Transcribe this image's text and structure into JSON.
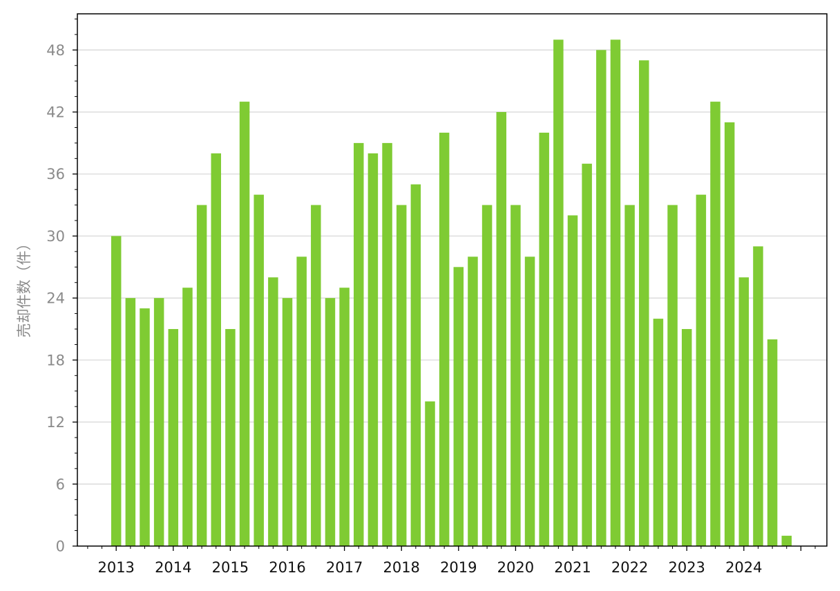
{
  "chart_data": {
    "type": "bar",
    "title": "",
    "xlabel": "",
    "ylabel": "売却件数（件）",
    "ylim": [
      0,
      51.5
    ],
    "yticks": [
      0,
      6,
      12,
      18,
      24,
      30,
      36,
      42,
      48
    ],
    "grid": "horizontal",
    "legend": "none",
    "bar_color": "#7fcb33",
    "x_tick_labels": [
      "2013",
      "2014",
      "2015",
      "2016",
      "2017",
      "2018",
      "2019",
      "2020",
      "2021",
      "2022",
      "2023",
      "2024"
    ],
    "categories": [
      "2013-Q1",
      "2013-Q2",
      "2013-Q3",
      "2013-Q4",
      "2014-Q1",
      "2014-Q2",
      "2014-Q3",
      "2014-Q4",
      "2015-Q1",
      "2015-Q2",
      "2015-Q3",
      "2015-Q4",
      "2016-Q1",
      "2016-Q2",
      "2016-Q3",
      "2016-Q4",
      "2017-Q1",
      "2017-Q2",
      "2017-Q3",
      "2017-Q4",
      "2018-Q1",
      "2018-Q2",
      "2018-Q3",
      "2018-Q4",
      "2019-Q1",
      "2019-Q2",
      "2019-Q3",
      "2019-Q4",
      "2020-Q1",
      "2020-Q2",
      "2020-Q3",
      "2020-Q4",
      "2021-Q1",
      "2021-Q2",
      "2021-Q3",
      "2021-Q4",
      "2022-Q1",
      "2022-Q2",
      "2022-Q3",
      "2022-Q4",
      "2023-Q1",
      "2023-Q2",
      "2023-Q3",
      "2023-Q4",
      "2024-Q1",
      "2024-Q2",
      "2024-Q3",
      "2024-Q4",
      "2025-Q1"
    ],
    "values": [
      30,
      24,
      23,
      24,
      21,
      25,
      33,
      38,
      21,
      43,
      34,
      26,
      24,
      28,
      33,
      24,
      25,
      39,
      38,
      39,
      33,
      35,
      14,
      40,
      27,
      28,
      33,
      42,
      33,
      28,
      40,
      49,
      32,
      37,
      48,
      49,
      33,
      47,
      22,
      33,
      21,
      34,
      43,
      41,
      26,
      29,
      20,
      1,
      0
    ]
  }
}
